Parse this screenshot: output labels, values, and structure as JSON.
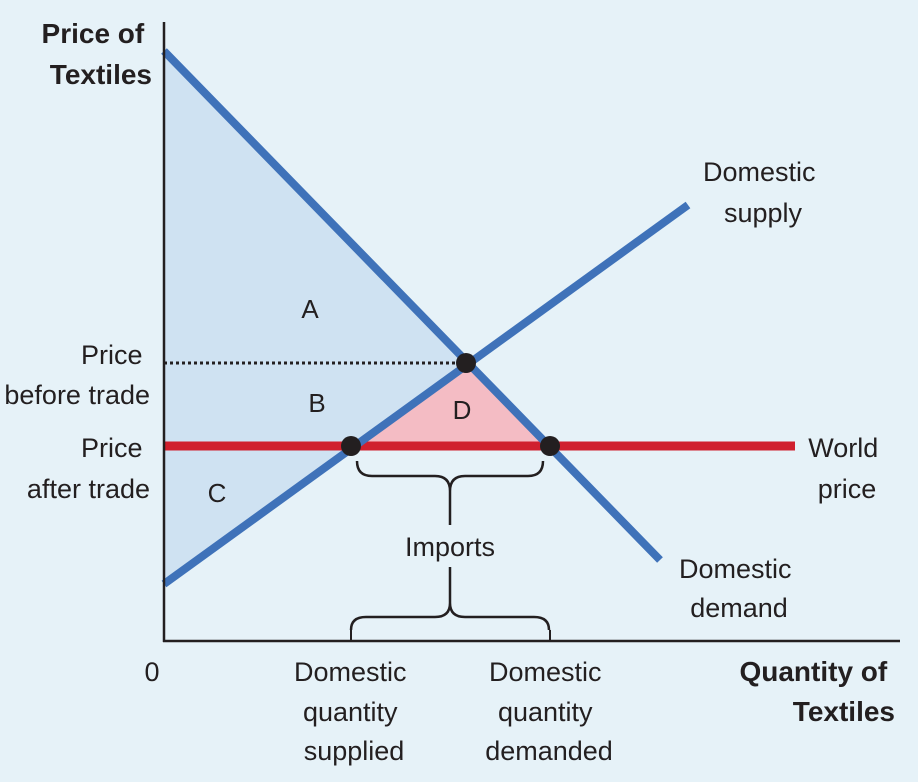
{
  "axes": {
    "y_title": [
      "Price of",
      "Textiles"
    ],
    "x_title": [
      "Quantity of",
      "Textiles"
    ],
    "origin": "0"
  },
  "price_labels": {
    "before_trade": [
      "Price",
      "before trade"
    ],
    "after_trade": [
      "Price",
      "after trade"
    ]
  },
  "quantity_labels": {
    "supplied": [
      "Domestic",
      "quantity",
      "supplied"
    ],
    "demanded": [
      "Domestic",
      "quantity",
      "demanded"
    ]
  },
  "curves": {
    "supply": [
      "Domestic",
      "supply"
    ],
    "demand": [
      "Domestic",
      "demand"
    ],
    "world_price": [
      "World",
      "price"
    ]
  },
  "regions": {
    "a": "A",
    "b": "B",
    "c": "C",
    "d": "D"
  },
  "imports_label": "Imports",
  "colors": {
    "curve": "#3f72b9",
    "world_price": "#d0202e",
    "surplus_fill": "#cfe2f2",
    "area_d": "#f4bcc4",
    "axis": "#231f20"
  }
}
